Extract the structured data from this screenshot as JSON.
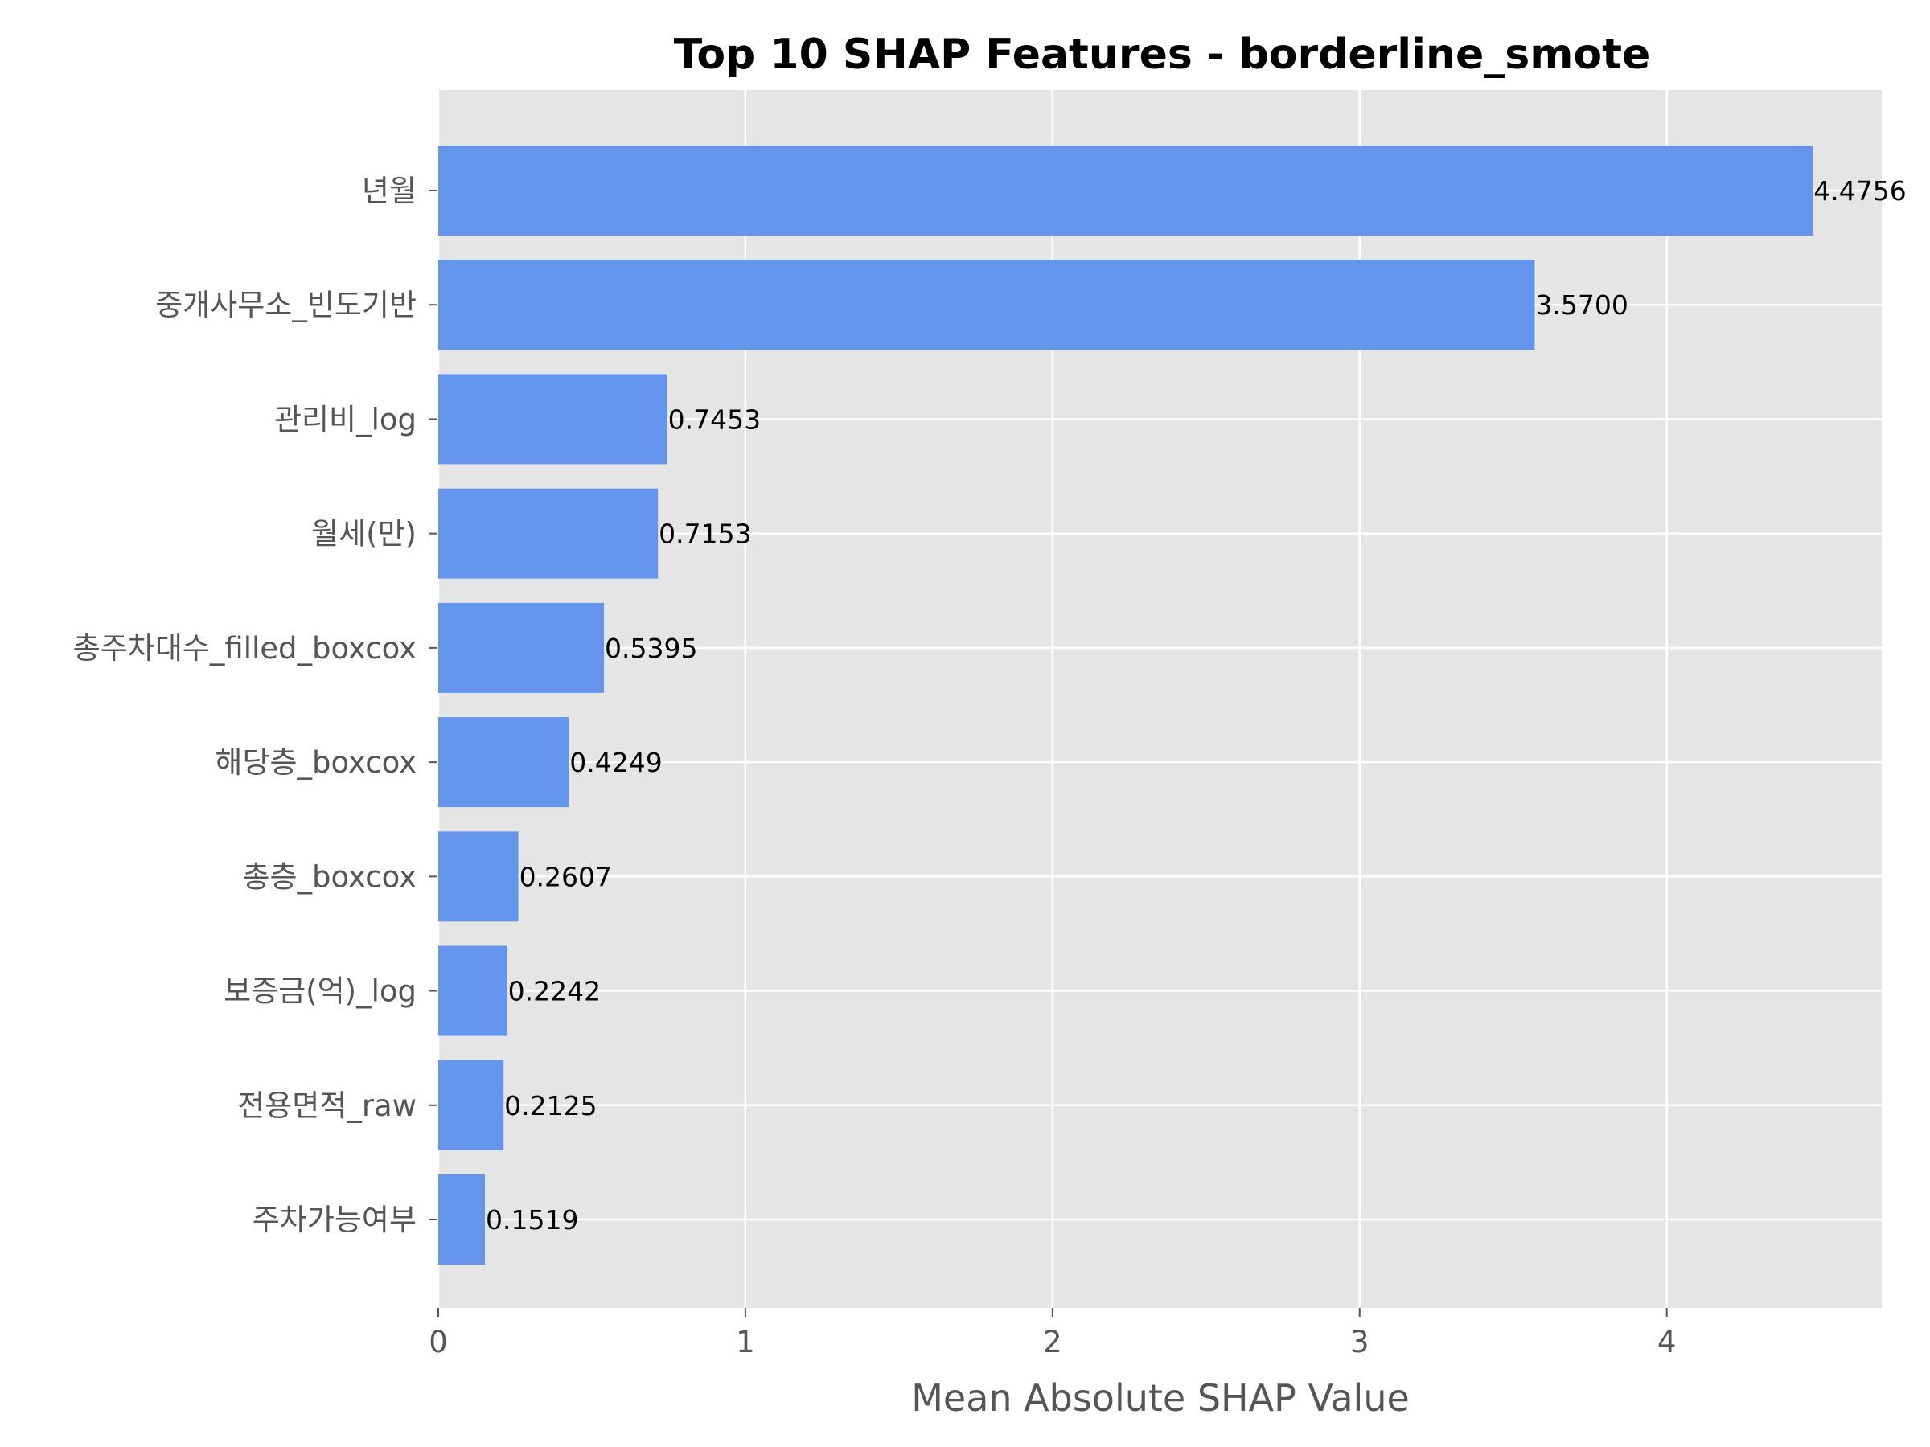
{
  "chart_data": {
    "type": "bar",
    "orientation": "horizontal",
    "title": "Top 10 SHAP Features - borderline_smote",
    "xlabel": "Mean Absolute SHAP Value",
    "ylabel": "",
    "xlim": [
      0,
      4.7
    ],
    "xticks": [
      0,
      1,
      2,
      3,
      4
    ],
    "xtick_labels": [
      "0",
      "1",
      "2",
      "3",
      "4"
    ],
    "grid": true,
    "background": "#e5e5e5",
    "bar_color": "#6495ed",
    "categories": [
      "년월",
      "중개사무소_빈도기반",
      "관리비_log",
      "월세(만)",
      "총주차대수_filled_boxcox",
      "해당층_boxcox",
      "총층_boxcox",
      "보증금(억)_log",
      "전용면적_raw",
      "주차가능여부"
    ],
    "values": [
      4.4756,
      3.57,
      0.7453,
      0.7153,
      0.5395,
      0.4249,
      0.2607,
      0.2242,
      0.2125,
      0.1519
    ],
    "value_labels": [
      "4.4756",
      "3.5700",
      "0.7453",
      "0.7153",
      "0.5395",
      "0.4249",
      "0.2607",
      "0.2242",
      "0.2125",
      "0.1519"
    ]
  }
}
